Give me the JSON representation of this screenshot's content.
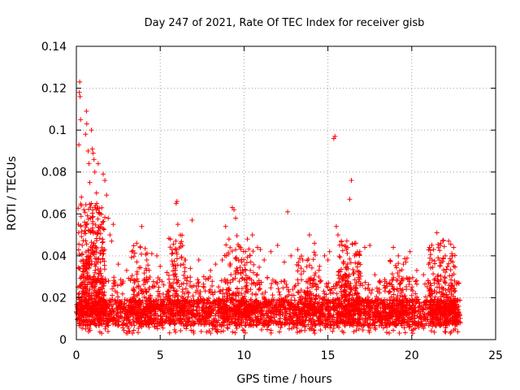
{
  "chart_data": {
    "type": "scatter",
    "title": "Day 247 of 2021, Rate Of TEC Index for receiver gisb",
    "xlabel": "GPS time / hours",
    "ylabel": "ROTI / TECUs",
    "xlim": [
      0,
      25
    ],
    "ylim": [
      0,
      0.14
    ],
    "xticks": [
      0,
      5,
      10,
      15,
      20,
      25
    ],
    "xtick_labels": [
      "0",
      "5",
      "10",
      "15",
      "20",
      "25"
    ],
    "yticks": [
      0,
      0.02,
      0.04,
      0.06,
      0.08,
      0.1,
      0.12,
      0.14
    ],
    "ytick_labels": [
      "0",
      "0.02",
      "0.04",
      "0.06",
      "0.08",
      "0.1",
      "0.12",
      "0.14"
    ],
    "grid": true,
    "marker": "+",
    "series": [
      {
        "name": "ROTI",
        "color": "#ff0000",
        "points": [
          [
            0.1,
            0.012
          ],
          [
            0.1,
            0.025
          ],
          [
            0.12,
            0.055
          ],
          [
            0.15,
            0.093
          ],
          [
            0.18,
            0.118
          ],
          [
            0.2,
            0.123
          ],
          [
            0.22,
            0.116
          ],
          [
            0.25,
            0.105
          ],
          [
            0.3,
            0.068
          ],
          [
            0.35,
            0.045
          ],
          [
            0.4,
            0.034
          ],
          [
            0.45,
            0.062
          ],
          [
            0.5,
            0.052
          ],
          [
            0.55,
            0.098
          ],
          [
            0.6,
            0.109
          ],
          [
            0.62,
            0.103
          ],
          [
            0.7,
            0.09
          ],
          [
            0.75,
            0.084
          ],
          [
            0.8,
            0.075
          ],
          [
            0.85,
            0.058
          ],
          [
            0.9,
            0.1
          ],
          [
            0.95,
            0.091
          ],
          [
            1.0,
            0.089
          ],
          [
            1.05,
            0.086
          ],
          [
            1.1,
            0.08
          ],
          [
            1.15,
            0.064
          ],
          [
            1.2,
            0.07
          ],
          [
            1.3,
            0.084
          ],
          [
            1.4,
            0.06
          ],
          [
            1.5,
            0.055
          ],
          [
            1.6,
            0.079
          ],
          [
            1.7,
            0.076
          ],
          [
            1.8,
            0.069
          ],
          [
            1.9,
            0.058
          ],
          [
            2.0,
            0.05
          ],
          [
            2.1,
            0.047
          ],
          [
            2.2,
            0.055
          ],
          [
            2.5,
            0.036
          ],
          [
            3.0,
            0.033
          ],
          [
            3.3,
            0.042
          ],
          [
            3.6,
            0.046
          ],
          [
            3.9,
            0.054
          ],
          [
            4.2,
            0.038
          ],
          [
            4.5,
            0.041
          ],
          [
            4.8,
            0.04
          ],
          [
            5.0,
            0.035
          ],
          [
            5.4,
            0.032
          ],
          [
            5.7,
            0.043
          ],
          [
            5.95,
            0.065
          ],
          [
            6.0,
            0.066
          ],
          [
            6.05,
            0.055
          ],
          [
            6.2,
            0.046
          ],
          [
            6.5,
            0.038
          ],
          [
            6.8,
            0.034
          ],
          [
            6.9,
            0.057
          ],
          [
            7.3,
            0.038
          ],
          [
            7.6,
            0.03
          ],
          [
            8.0,
            0.033
          ],
          [
            8.3,
            0.036
          ],
          [
            8.7,
            0.038
          ],
          [
            8.9,
            0.054
          ],
          [
            9.1,
            0.048
          ],
          [
            9.3,
            0.063
          ],
          [
            9.4,
            0.062
          ],
          [
            9.5,
            0.058
          ],
          [
            9.8,
            0.044
          ],
          [
            10.2,
            0.048
          ],
          [
            10.5,
            0.05
          ],
          [
            10.8,
            0.044
          ],
          [
            11.2,
            0.038
          ],
          [
            11.6,
            0.042
          ],
          [
            12.0,
            0.045
          ],
          [
            12.4,
            0.037
          ],
          [
            12.6,
            0.061
          ],
          [
            12.8,
            0.04
          ],
          [
            13.2,
            0.043
          ],
          [
            13.5,
            0.038
          ],
          [
            13.9,
            0.05
          ],
          [
            14.2,
            0.046
          ],
          [
            14.5,
            0.035
          ],
          [
            14.8,
            0.04
          ],
          [
            15.0,
            0.038
          ],
          [
            15.1,
            0.042
          ],
          [
            15.35,
            0.096
          ],
          [
            15.42,
            0.097
          ],
          [
            15.5,
            0.054
          ],
          [
            15.6,
            0.05
          ],
          [
            15.8,
            0.047
          ],
          [
            16.1,
            0.043
          ],
          [
            16.3,
            0.067
          ],
          [
            16.4,
            0.076
          ],
          [
            16.6,
            0.046
          ],
          [
            16.9,
            0.042
          ],
          [
            17.2,
            0.044
          ],
          [
            17.5,
            0.045
          ],
          [
            17.8,
            0.031
          ],
          [
            18.1,
            0.028
          ],
          [
            18.5,
            0.027
          ],
          [
            18.9,
            0.044
          ],
          [
            19.2,
            0.04
          ],
          [
            19.5,
            0.036
          ],
          [
            19.9,
            0.042
          ],
          [
            20.3,
            0.033
          ],
          [
            20.7,
            0.031
          ],
          [
            21.0,
            0.036
          ],
          [
            21.3,
            0.043
          ],
          [
            21.5,
            0.051
          ],
          [
            21.7,
            0.045
          ],
          [
            22.0,
            0.04
          ],
          [
            22.2,
            0.047
          ],
          [
            22.5,
            0.044
          ],
          [
            22.8,
            0.027
          ],
          [
            22.85,
            0.012
          ],
          [
            22.9,
            0.008
          ]
        ],
        "baseline_band": {
          "x_range": [
            0.0,
            22.9
          ],
          "y_min": 0.003,
          "y_mode": 0.012,
          "y_upper": 0.03,
          "count": 3400
        },
        "bursts": [
          {
            "x_center": 0.9,
            "x_width": 1.6,
            "y_upper": 0.065,
            "count": 420
          },
          {
            "x_center": 3.8,
            "x_width": 1.2,
            "y_upper": 0.045,
            "count": 90
          },
          {
            "x_center": 6.0,
            "x_width": 1.0,
            "y_upper": 0.05,
            "count": 110
          },
          {
            "x_center": 9.4,
            "x_width": 1.2,
            "y_upper": 0.05,
            "count": 110
          },
          {
            "x_center": 10.5,
            "x_width": 1.0,
            "y_upper": 0.045,
            "count": 70
          },
          {
            "x_center": 13.8,
            "x_width": 1.4,
            "y_upper": 0.042,
            "count": 70
          },
          {
            "x_center": 16.3,
            "x_width": 1.4,
            "y_upper": 0.048,
            "count": 180
          },
          {
            "x_center": 19.2,
            "x_width": 1.2,
            "y_upper": 0.04,
            "count": 70
          },
          {
            "x_center": 21.8,
            "x_width": 1.6,
            "y_upper": 0.048,
            "count": 170
          }
        ]
      }
    ]
  }
}
